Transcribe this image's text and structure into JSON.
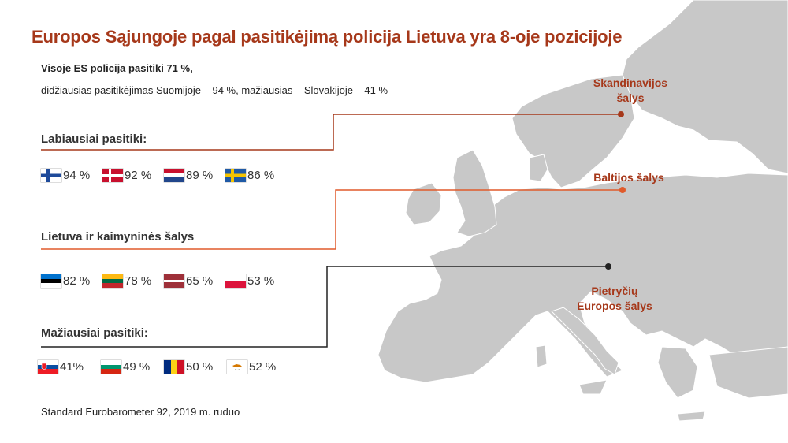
{
  "title": "Europos Sąjungoje pagal pasitikėjimą policija Lietuva yra 8-oje pozicijoje",
  "subtitle_bold": "Visoje ES policija pasitiki 71 %,",
  "subtitle_text": "didžiausias pasitikėjimas Suomijoje – 94 %, mažiausias – Slovakijoje – 41 %",
  "groups": [
    {
      "label": "Labiausiai pasitiki:",
      "items": [
        {
          "flag": "finland-flag",
          "value": "94 %"
        },
        {
          "flag": "denmark-flag",
          "value": "92 %"
        },
        {
          "flag": "netherlands-flag",
          "value": "89 %"
        },
        {
          "flag": "sweden-flag",
          "value": "86 %"
        }
      ]
    },
    {
      "label": "Lietuva ir kaimyninės šalys",
      "items": [
        {
          "flag": "estonia-flag",
          "value": "82 %"
        },
        {
          "flag": "lithuania-flag",
          "value": "78 %"
        },
        {
          "flag": "latvia-flag",
          "value": "65 %"
        },
        {
          "flag": "poland-flag",
          "value": "53 %"
        }
      ]
    },
    {
      "label": "Mažiausiai pasitiki:",
      "items": [
        {
          "flag": "slovakia-flag",
          "value": "41%"
        },
        {
          "flag": "bulgaria-flag",
          "value": "49 %"
        },
        {
          "flag": "romania-flag",
          "value": "50 %"
        },
        {
          "flag": "cyprus-flag",
          "value": "52 %"
        }
      ]
    }
  ],
  "regions": {
    "scandinavia_line1": "Skandinavijos",
    "scandinavia_line2": "šalys",
    "baltic": "Baltijos šalys",
    "southeast_line1": "Pietryčių",
    "southeast_line2": "Europos šalys"
  },
  "source": "Standard Eurobarometer 92, 2019 m. ruduo",
  "colors": {
    "accent": "#a6381a",
    "baltic_line": "#e05a2b",
    "map": "#c8c8c8",
    "dark_line": "#222222"
  }
}
